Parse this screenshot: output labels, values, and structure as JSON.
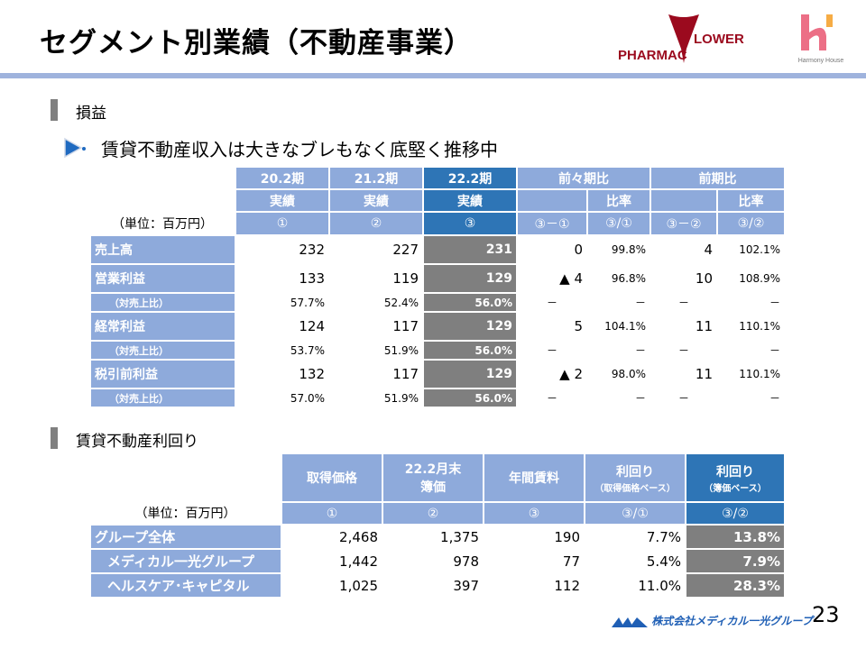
{
  "title": "セグメント別業績（不動産事業）",
  "logos": {
    "pharmacflower": "PHARMAC FLOWER",
    "harmony": "Harmony House",
    "footer": "株式会社メディカル一光グループ"
  },
  "page_number": "23",
  "colors": {
    "header": "#8eaadb",
    "highlight_header": "#2e75b6",
    "highlight_cell": "#7f7f7f",
    "rule": "#9fb3dd"
  },
  "section1": {
    "heading": "損益",
    "bullet": "賃貸不動産収入は大きなブレもなく底堅く推移中",
    "unit": "（単位：百万円）",
    "headers": {
      "c1a": "20.2期",
      "c1b": "実績",
      "c2a": "21.2期",
      "c2b": "実績",
      "c3a": "22.2期",
      "c3b": "実績",
      "cmp1": "前々期比",
      "cmp2": "前期比",
      "ratio": "比率"
    },
    "circled": [
      "①",
      "②",
      "③",
      "③－①",
      "③/①",
      "③－②",
      "③/②"
    ],
    "rows": [
      {
        "label": "売上高",
        "v": [
          "232",
          "227",
          "231",
          "0",
          "99.8%",
          "4",
          "102.1%"
        ]
      },
      {
        "label": "営業利益",
        "v": [
          "133",
          "119",
          "129",
          "▲ 4",
          "96.8%",
          "10",
          "108.9%"
        ]
      },
      {
        "label": "（対売上比）",
        "v": [
          "57.7%",
          "52.4%",
          "56.0%",
          "－",
          "－",
          "－",
          "－"
        ]
      },
      {
        "label": "経常利益",
        "v": [
          "124",
          "117",
          "129",
          "5",
          "104.1%",
          "11",
          "110.1%"
        ]
      },
      {
        "label": "（対売上比）",
        "v": [
          "53.7%",
          "51.9%",
          "56.0%",
          "－",
          "－",
          "－",
          "－"
        ]
      },
      {
        "label": "税引前利益",
        "v": [
          "132",
          "117",
          "129",
          "▲ 2",
          "98.0%",
          "11",
          "110.1%"
        ]
      },
      {
        "label": "（対売上比）",
        "v": [
          "57.0%",
          "51.9%",
          "56.0%",
          "－",
          "－",
          "－",
          "－"
        ]
      }
    ]
  },
  "section2": {
    "heading": "賃貸不動産利回り",
    "unit": "（単位：百万円）",
    "headers": [
      "取得価格",
      "22.2月末",
      "簿価",
      "年間賃料",
      "利回り",
      "（取得価格ベース）",
      "利回り",
      "（簿価ベース）"
    ],
    "circled": [
      "①",
      "②",
      "③",
      "③/①",
      "③/②"
    ],
    "rows": [
      {
        "label": "グループ全体",
        "v": [
          "2,468",
          "1,375",
          "190",
          "7.7%",
          "13.8%"
        ]
      },
      {
        "label": "メディカル一光グループ",
        "v": [
          "1,442",
          "978",
          "77",
          "5.4%",
          "7.9%"
        ]
      },
      {
        "label": "ヘルスケア･キャピタル",
        "v": [
          "1,025",
          "397",
          "112",
          "11.0%",
          "28.3%"
        ]
      }
    ]
  }
}
